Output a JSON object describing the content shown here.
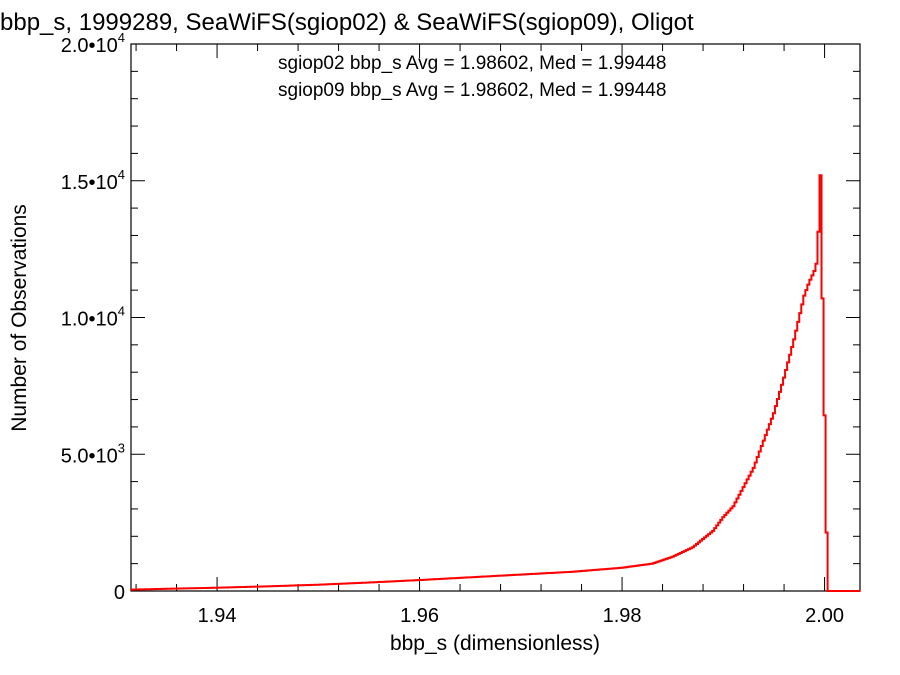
{
  "chart_data": {
    "type": "line",
    "title": "bbp_s, 1999289, SeaWiFS(sgiop02) & SeaWiFS(sgiop09), Oligot",
    "xlabel": "bbp_s (dimensionless)",
    "ylabel": "Number of Observations",
    "xlim": [
      1.9315,
      2.0035
    ],
    "ylim": [
      0,
      20000
    ],
    "grid": false,
    "x_ticks": [
      {
        "value": 1.94,
        "label": "1.94"
      },
      {
        "value": 1.96,
        "label": "1.96"
      },
      {
        "value": 1.98,
        "label": "1.98"
      },
      {
        "value": 2.0,
        "label": "2.00"
      }
    ],
    "y_ticks": [
      {
        "value": 0,
        "mantissa": "0",
        "exponent": ""
      },
      {
        "value": 5000,
        "mantissa": "5.0•10",
        "exponent": "3"
      },
      {
        "value": 10000,
        "mantissa": "1.0•10",
        "exponent": "4"
      },
      {
        "value": 15000,
        "mantissa": "1.5•10",
        "exponent": "4"
      },
      {
        "value": 20000,
        "mantissa": "2.0•10",
        "exponent": "4"
      }
    ],
    "annotations": [
      {
        "text": "sgiop02 bbp_s Avg = 1.98602, Med = 1.99448",
        "color": "#000000"
      },
      {
        "text": "sgiop09 bbp_s Avg = 1.98602, Med = 1.99448",
        "color": "#ff0000"
      }
    ],
    "series": [
      {
        "color": "#ff0000",
        "x": [
          1.9315,
          1.935,
          1.94,
          1.945,
          1.95,
          1.955,
          1.96,
          1.965,
          1.97,
          1.975,
          1.98,
          1.983,
          1.985,
          1.987,
          1.989,
          1.99,
          1.991,
          1.992,
          1.993,
          1.994,
          1.995,
          1.996,
          1.997,
          1.998,
          1.9985,
          1.999,
          1.9993,
          1.9996,
          1.9998,
          2.0003,
          2.0035
        ],
        "y": [
          50,
          80,
          120,
          170,
          230,
          310,
          400,
          500,
          600,
          700,
          850,
          1000,
          1250,
          1600,
          2200,
          2700,
          3100,
          3800,
          4500,
          5500,
          6500,
          7800,
          9200,
          10800,
          11300,
          11700,
          12100,
          15200,
          10700,
          0,
          0
        ]
      }
    ]
  }
}
